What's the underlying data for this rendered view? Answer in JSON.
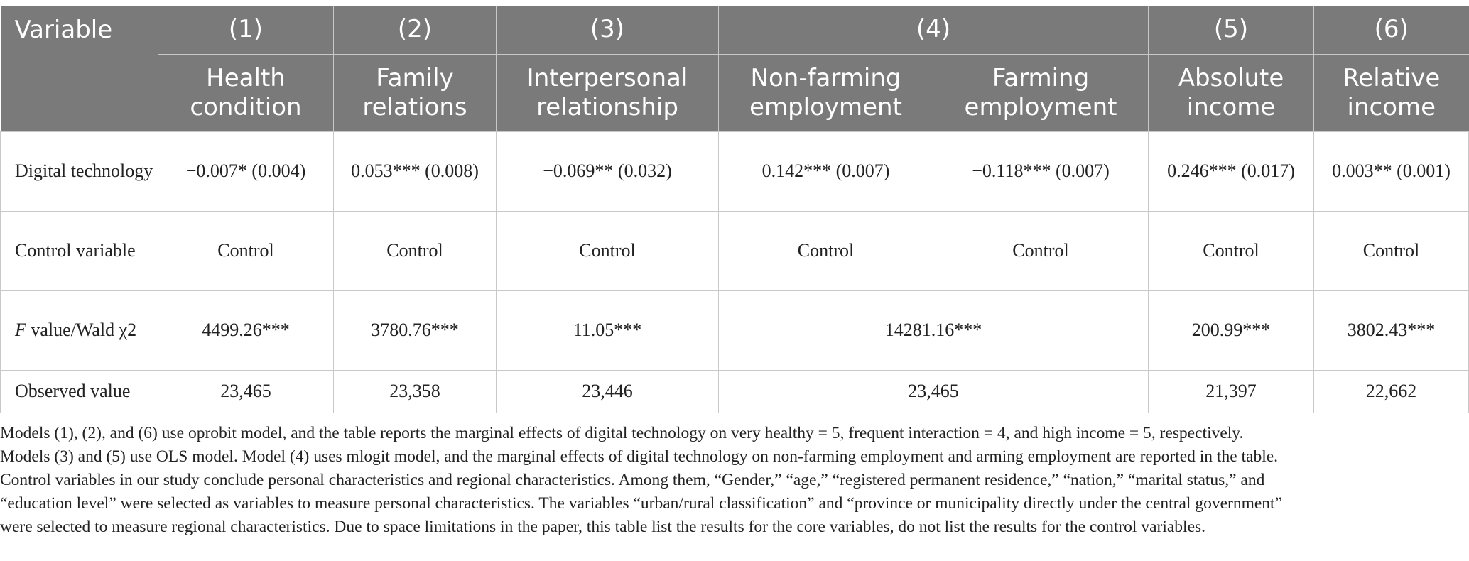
{
  "headers": {
    "variable": "Variable",
    "models": [
      "(1)",
      "(2)",
      "(3)",
      "(4)",
      "(5)",
      "(6)"
    ],
    "outcomes": [
      "Health condition",
      "Family relations",
      "Interpersonal relationship",
      "Non-farming employment",
      "Farming employment",
      "Absolute income",
      "Relative income"
    ]
  },
  "rows": {
    "digital": {
      "label": "Digital technology",
      "cells": [
        "−0.007* (0.004)",
        "0.053*** (0.008)",
        "−0.069** (0.032)",
        "0.142*** (0.007)",
        "−0.118*** (0.007)",
        "0.246*** (0.017)",
        "0.003** (0.001)"
      ]
    },
    "control": {
      "label": "Control variable",
      "cells": [
        "Control",
        "Control",
        "Control",
        "Control",
        "Control",
        "Control",
        "Control"
      ]
    },
    "fvalue": {
      "label_italic": "F",
      "label_rest": " value/Wald χ2",
      "cells": [
        "4499.26***",
        "3780.76***",
        "11.05***",
        "14281.16***",
        "200.99***",
        "3802.43***"
      ]
    },
    "observed": {
      "label": "Observed value",
      "cells": [
        "23,465",
        "23,358",
        "23,446",
        "23,465",
        "21,397",
        "22,662"
      ]
    }
  },
  "notes": [
    "Models (1), (2), and (6) use oprobit model, and the table reports the marginal effects of digital technology on very healthy = 5, frequent interaction = 4, and high income = 5, respectively.",
    "Models (3) and (5) use OLS model. Model (4) uses mlogit model, and the marginal effects of digital technology on non-farming employment and arming employment are reported in the table.",
    "Control variables in our study conclude personal characteristics and regional characteristics. Among them, “Gender,” “age,” “registered permanent residence,” “nation,” “marital status,” and",
    "“education level” were selected as variables to measure personal characteristics. The variables “urban/rural classification” and “province or municipality directly under the central government”",
    "were selected to measure regional characteristics. Due to space limitations in the paper, this table list the results for the core variables, do not list the results for the control variables."
  ]
}
